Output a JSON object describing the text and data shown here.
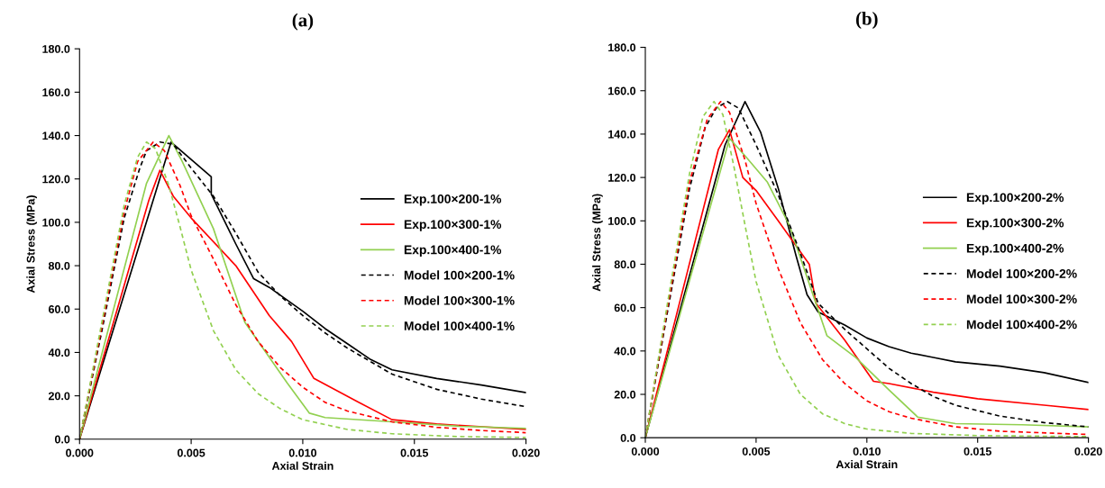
{
  "chart_data": [
    {
      "type": "line",
      "title": "(a)",
      "xlabel": "Axial Strain",
      "ylabel": "Axial Stress (MPa)",
      "xlim": [
        0,
        0.02
      ],
      "ylim": [
        0,
        180
      ],
      "xticks": [
        {
          "value": 0,
          "label": "0.000"
        },
        {
          "value": 0.005,
          "label": "0.005"
        },
        {
          "value": 0.01,
          "label": "0.010"
        },
        {
          "value": 0.015,
          "label": "0.015"
        },
        {
          "value": 0.02,
          "label": "0.020"
        }
      ],
      "yticks": [
        {
          "value": 0,
          "label": "0.0"
        },
        {
          "value": 20,
          "label": "20.0"
        },
        {
          "value": 40,
          "label": "40.0"
        },
        {
          "value": 60,
          "label": "60.0"
        },
        {
          "value": 80,
          "label": "80.0"
        },
        {
          "value": 100,
          "label": "100.0"
        },
        {
          "value": 120,
          "label": "120.0"
        },
        {
          "value": 140,
          "label": "140.0"
        },
        {
          "value": 160,
          "label": "160.0"
        },
        {
          "value": 180,
          "label": "180.0"
        }
      ],
      "grid": false,
      "legend": "right",
      "series": [
        {
          "name": "Exp.100×200-1%",
          "color": "#000000",
          "line_style": "solid",
          "x": [
            0,
            0.0041,
            0.0059,
            0.0059,
            0.007,
            0.0078,
            0.0085,
            0.01,
            0.011,
            0.012,
            0.013,
            0.014,
            0.016,
            0.018,
            0.02
          ],
          "values": [
            0,
            137,
            121,
            113,
            90,
            74,
            70,
            59,
            51,
            44,
            37,
            32,
            28,
            25,
            21.5
          ]
        },
        {
          "name": "Exp.100×300-1%",
          "color": "#ff0000",
          "line_style": "solid",
          "x": [
            0,
            0.0031,
            0.0036,
            0.0042,
            0.005,
            0.007,
            0.0085,
            0.0095,
            0.0105,
            0.0125,
            0.014,
            0.016,
            0.02
          ],
          "values": [
            0,
            110,
            124,
            112,
            102,
            80,
            57,
            45,
            28,
            17,
            9,
            7,
            4.5
          ]
        },
        {
          "name": "Exp.100×400-1%",
          "color": "#92d050",
          "line_style": "solid",
          "x": [
            0,
            0.003,
            0.004,
            0.0046,
            0.006,
            0.0074,
            0.0093,
            0.0103,
            0.011,
            0.014,
            0.017,
            0.02
          ],
          "values": [
            0,
            118,
            140,
            128,
            97,
            54,
            26,
            12,
            10,
            8,
            6,
            5
          ]
        },
        {
          "name": "Model 100×200-1%",
          "color": "#000000",
          "line_style": "dashed",
          "x": [
            0,
            0.001,
            0.002,
            0.0027,
            0.003,
            0.0036,
            0.0042,
            0.005,
            0.006,
            0.007,
            0.008,
            0.009,
            0.01,
            0.011,
            0.012,
            0.014,
            0.016,
            0.018,
            0.02
          ],
          "values": [
            0,
            50,
            102,
            125,
            133,
            137,
            136,
            125,
            112,
            95,
            77,
            66,
            57,
            49,
            42,
            30,
            23,
            18.5,
            15
          ]
        },
        {
          "name": "Model 100×300-1%",
          "color": "#ff0000",
          "line_style": "dashed",
          "x": [
            0,
            0.001,
            0.002,
            0.0026,
            0.0033,
            0.0038,
            0.0045,
            0.005,
            0.006,
            0.007,
            0.008,
            0.009,
            0.01,
            0.011,
            0.012,
            0.014,
            0.016,
            0.018,
            0.02
          ],
          "values": [
            0,
            52,
            105,
            128,
            137,
            133,
            117,
            103,
            83,
            62,
            45,
            33,
            24,
            17,
            13,
            8,
            5.5,
            4,
            3
          ]
        },
        {
          "name": "Model 100×400-1%",
          "color": "#92d050",
          "line_style": "dashed",
          "x": [
            0,
            0.001,
            0.002,
            0.0026,
            0.003,
            0.0034,
            0.004,
            0.0045,
            0.005,
            0.006,
            0.007,
            0.008,
            0.009,
            0.01,
            0.012,
            0.014,
            0.017,
            0.02
          ],
          "values": [
            0,
            54,
            108,
            130,
            137,
            134,
            117,
            98,
            78,
            50,
            32,
            21,
            14,
            9,
            4.5,
            2.5,
            1.2,
            0.8
          ]
        }
      ]
    },
    {
      "type": "line",
      "title": "(b)",
      "xlabel": "Axial Strain",
      "ylabel": "Axial Stress (MPa)",
      "xlim": [
        0,
        0.02
      ],
      "ylim": [
        0,
        180
      ],
      "xticks": [
        {
          "value": 0,
          "label": "0.000"
        },
        {
          "value": 0.005,
          "label": "0.005"
        },
        {
          "value": 0.01,
          "label": "0.010"
        },
        {
          "value": 0.015,
          "label": "0.015"
        },
        {
          "value": 0.02,
          "label": "0.020"
        }
      ],
      "yticks": [
        {
          "value": 0,
          "label": "0.0"
        },
        {
          "value": 20,
          "label": "20.0"
        },
        {
          "value": 40,
          "label": "40.0"
        },
        {
          "value": 60,
          "label": "60.0"
        },
        {
          "value": 80,
          "label": "80.0"
        },
        {
          "value": 100,
          "label": "100.0"
        },
        {
          "value": 120,
          "label": "120.0"
        },
        {
          "value": 140,
          "label": "140.0"
        },
        {
          "value": 160,
          "label": "160.0"
        },
        {
          "value": 180,
          "label": "180.0"
        }
      ],
      "grid": false,
      "legend": "right",
      "series": [
        {
          "name": "Exp.100×200-2%",
          "color": "#000000",
          "line_style": "solid",
          "x": [
            0,
            0.0036,
            0.0045,
            0.0052,
            0.006,
            0.0068,
            0.0073,
            0.0078,
            0.009,
            0.01,
            0.011,
            0.012,
            0.013,
            0.014,
            0.016,
            0.018,
            0.02
          ],
          "values": [
            0,
            135,
            155,
            141,
            115,
            84,
            66,
            58,
            52,
            46,
            42,
            39,
            37,
            35,
            33,
            30,
            25.5
          ]
        },
        {
          "name": "Exp.100×300-2%",
          "color": "#ff0000",
          "line_style": "solid",
          "x": [
            0,
            0.0033,
            0.0038,
            0.0044,
            0.005,
            0.006,
            0.0074,
            0.0075,
            0.0077,
            0.009,
            0.0103,
            0.011,
            0.013,
            0.015,
            0.018,
            0.02
          ],
          "values": [
            0,
            133,
            142,
            120,
            114,
            100,
            80,
            74,
            62,
            45,
            26,
            25,
            21,
            18,
            15,
            13
          ]
        },
        {
          "name": "Exp.100×400-2%",
          "color": "#92d050",
          "line_style": "solid",
          "x": [
            0,
            0.0038,
            0.0045,
            0.0055,
            0.0065,
            0.0075,
            0.0082,
            0.0095,
            0.011,
            0.0123,
            0.014,
            0.017,
            0.02
          ],
          "values": [
            0,
            138,
            130,
            118,
            98,
            68,
            47,
            37,
            22,
            9.5,
            6.5,
            6,
            5
          ]
        },
        {
          "name": "Model 100×200-2%",
          "color": "#000000",
          "line_style": "dashed",
          "x": [
            0,
            0.001,
            0.002,
            0.0027,
            0.0032,
            0.0037,
            0.0042,
            0.005,
            0.006,
            0.007,
            0.0078,
            0.009,
            0.01,
            0.011,
            0.012,
            0.013,
            0.014,
            0.016,
            0.018,
            0.02
          ],
          "values": [
            0,
            58,
            115,
            143,
            152,
            155,
            152,
            135,
            112,
            85,
            62,
            50,
            41,
            32,
            25,
            19,
            15,
            10,
            7,
            5
          ]
        },
        {
          "name": "Model 100×300-2%",
          "color": "#ff0000",
          "line_style": "dashed",
          "x": [
            0,
            0.001,
            0.002,
            0.0028,
            0.0034,
            0.0038,
            0.0045,
            0.005,
            0.006,
            0.007,
            0.008,
            0.009,
            0.01,
            0.011,
            0.012,
            0.014,
            0.016,
            0.02
          ],
          "values": [
            0,
            60,
            118,
            147,
            155,
            150,
            128,
            108,
            78,
            53,
            36,
            25,
            17,
            12,
            9,
            5,
            3,
            1.5
          ]
        },
        {
          "name": "Model 100×400-2%",
          "color": "#92d050",
          "line_style": "dashed",
          "x": [
            0,
            0.001,
            0.002,
            0.0026,
            0.0031,
            0.0035,
            0.004,
            0.0045,
            0.005,
            0.006,
            0.007,
            0.008,
            0.009,
            0.01,
            0.012,
            0.015,
            0.02
          ],
          "values": [
            0,
            62,
            122,
            148,
            155,
            149,
            125,
            98,
            72,
            38,
            20,
            11,
            6.5,
            4,
            2,
            1,
            0.5
          ]
        }
      ]
    }
  ]
}
